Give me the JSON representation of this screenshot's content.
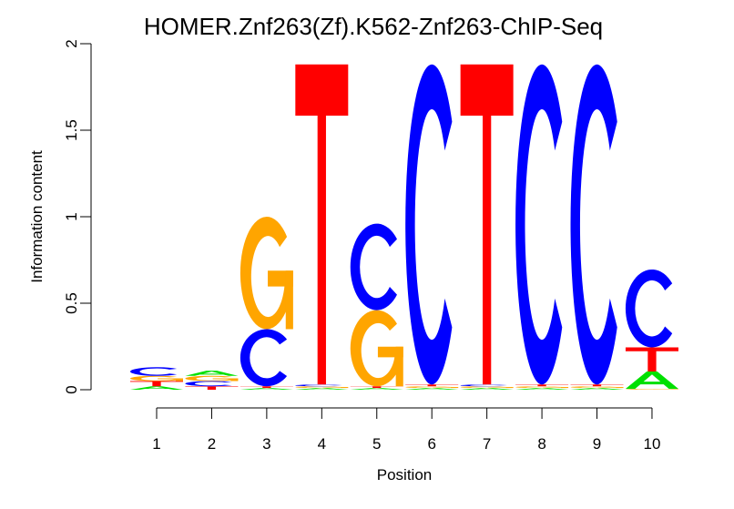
{
  "chart_data": {
    "type": "sequence-logo",
    "title": "HOMER.Znf263(Zf).K562-Znf263-ChIP-Seq",
    "xlabel": "Position",
    "ylabel": "Information content",
    "ylim": [
      0,
      2
    ],
    "yticks": [
      "0",
      "0.5",
      "1",
      "1.5",
      "2"
    ],
    "xticks": [
      "1",
      "2",
      "3",
      "4",
      "5",
      "6",
      "7",
      "8",
      "9",
      "10"
    ],
    "colors": {
      "A": "#00E000",
      "C": "#0000FF",
      "G": "#FFA500",
      "T": "#FF0000"
    },
    "positions": [
      {
        "position": 1,
        "stack": [
          {
            "letter": "A",
            "height": 0.02
          },
          {
            "letter": "T",
            "height": 0.03
          },
          {
            "letter": "G",
            "height": 0.03
          },
          {
            "letter": "C",
            "height": 0.05
          }
        ]
      },
      {
        "position": 2,
        "stack": [
          {
            "letter": "T",
            "height": 0.02
          },
          {
            "letter": "C",
            "height": 0.03
          },
          {
            "letter": "G",
            "height": 0.03
          },
          {
            "letter": "A",
            "height": 0.03
          }
        ]
      },
      {
        "position": 3,
        "stack": [
          {
            "letter": "A",
            "height": 0.01
          },
          {
            "letter": "T",
            "height": 0.01
          },
          {
            "letter": "C",
            "height": 0.33
          },
          {
            "letter": "G",
            "height": 0.65
          }
        ]
      },
      {
        "position": 4,
        "stack": [
          {
            "letter": "A",
            "height": 0.01
          },
          {
            "letter": "G",
            "height": 0.01
          },
          {
            "letter": "C",
            "height": 0.01
          },
          {
            "letter": "T",
            "height": 1.85
          }
        ]
      },
      {
        "position": 5,
        "stack": [
          {
            "letter": "A",
            "height": 0.01
          },
          {
            "letter": "T",
            "height": 0.01
          },
          {
            "letter": "G",
            "height": 0.44
          },
          {
            "letter": "C",
            "height": 0.5
          }
        ]
      },
      {
        "position": 6,
        "stack": [
          {
            "letter": "A",
            "height": 0.01
          },
          {
            "letter": "G",
            "height": 0.01
          },
          {
            "letter": "T",
            "height": 0.01
          },
          {
            "letter": "C",
            "height": 1.85
          }
        ]
      },
      {
        "position": 7,
        "stack": [
          {
            "letter": "A",
            "height": 0.01
          },
          {
            "letter": "G",
            "height": 0.01
          },
          {
            "letter": "C",
            "height": 0.01
          },
          {
            "letter": "T",
            "height": 1.85
          }
        ]
      },
      {
        "position": 8,
        "stack": [
          {
            "letter": "A",
            "height": 0.01
          },
          {
            "letter": "G",
            "height": 0.01
          },
          {
            "letter": "T",
            "height": 0.01
          },
          {
            "letter": "C",
            "height": 1.85
          }
        ]
      },
      {
        "position": 9,
        "stack": [
          {
            "letter": "A",
            "height": 0.01
          },
          {
            "letter": "G",
            "height": 0.01
          },
          {
            "letter": "T",
            "height": 0.01
          },
          {
            "letter": "C",
            "height": 1.85
          }
        ]
      },
      {
        "position": 10,
        "stack": [
          {
            "letter": "G",
            "height": 0.005
          },
          {
            "letter": "A",
            "height": 0.1
          },
          {
            "letter": "T",
            "height": 0.14
          },
          {
            "letter": "C",
            "height": 0.45
          }
        ]
      }
    ]
  }
}
